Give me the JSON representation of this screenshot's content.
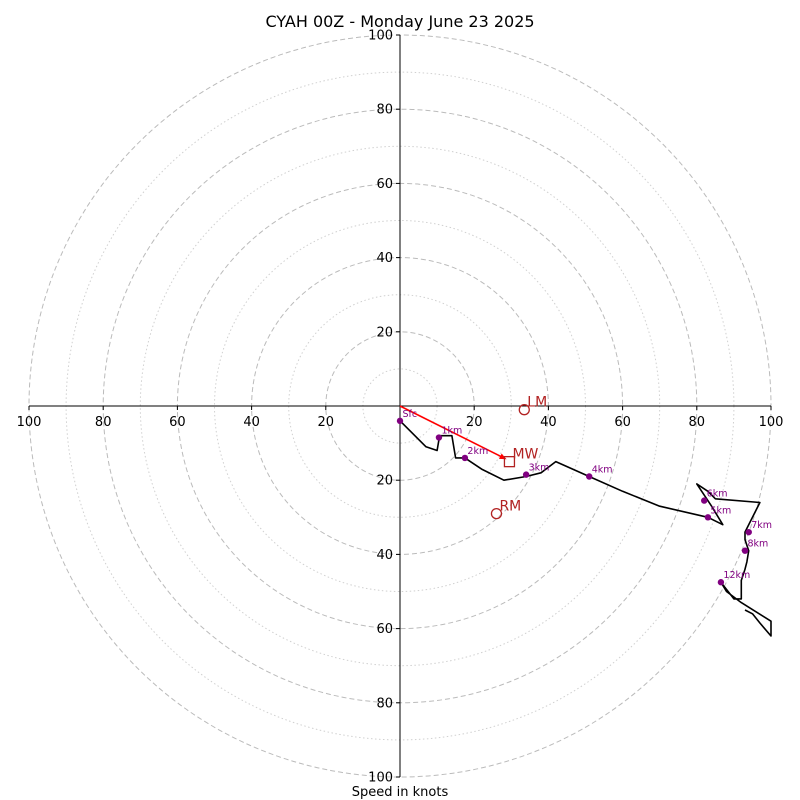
{
  "chart_data": {
    "type": "line",
    "title": "CYAH 00Z - Monday June 23 2025",
    "xlabel": "Speed in knots",
    "ylabel": "",
    "xlim": [
      -100,
      100
    ],
    "ylim": [
      -100,
      100
    ],
    "ring_ticks_x": [
      -100,
      -80,
      -60,
      -40,
      -20,
      20,
      40,
      60,
      80,
      100
    ],
    "ring_ticks_y": [
      -100,
      -80,
      -60,
      -40,
      -20,
      20,
      40,
      60,
      80,
      100
    ],
    "tick_labels_x": [
      "100",
      "80",
      "60",
      "40",
      "20",
      "20",
      "40",
      "60",
      "80",
      "100"
    ],
    "tick_labels_y": [
      "100",
      "80",
      "60",
      "40",
      "20",
      "20",
      "40",
      "60",
      "80",
      "100"
    ],
    "major_rings": [
      20,
      40,
      60,
      80,
      100
    ],
    "minor_rings": [
      10,
      30,
      50,
      70,
      90
    ],
    "grid": true,
    "colors": {
      "hodograph": "#000000",
      "height_markers": "#800080",
      "mean_wind_vector": "#ff0000",
      "motion_markers": "#b22222",
      "major_grid": "#bbbbbb",
      "minor_grid": "#d0d0d0"
    },
    "series": [
      {
        "x": [
          0,
          7,
          10,
          10.5,
          11,
          14,
          15,
          17.5,
          22,
          28,
          34,
          38,
          42,
          51,
          60,
          70,
          83,
          87,
          84,
          80,
          83,
          85,
          97,
          93,
          93,
          94,
          93.5,
          93,
          92,
          92,
          90,
          86.5,
          88,
          92,
          100,
          100,
          97,
          95,
          93
        ],
        "y": [
          -4,
          -11,
          -12,
          -9,
          -8,
          -8,
          -14,
          -14,
          -17,
          -20,
          -19,
          -18,
          -15,
          -19,
          -23,
          -27,
          -30,
          -32,
          -27,
          -21,
          -23,
          -25,
          -26,
          -34,
          -36,
          -39,
          -42,
          -44,
          -47,
          -52,
          -52,
          -47.5,
          -50,
          -53,
          -58,
          -62,
          -58.5,
          -56,
          -55
        ]
      }
    ],
    "height_markers": [
      {
        "label": "Sfc",
        "x": 0,
        "y": -4
      },
      {
        "label": "1km",
        "x": 10.5,
        "y": -8.5
      },
      {
        "label": "2km",
        "x": 17.5,
        "y": -14
      },
      {
        "label": "3km",
        "x": 34,
        "y": -18.5
      },
      {
        "label": "4km",
        "x": 51,
        "y": -19
      },
      {
        "label": "5km",
        "x": 83,
        "y": -30
      },
      {
        "label": "6km",
        "x": 82,
        "y": -25.5
      },
      {
        "label": "7km",
        "x": 94,
        "y": -34
      },
      {
        "label": "8km",
        "x": 93,
        "y": -39
      },
      {
        "label": "12km",
        "x": 86.5,
        "y": -47.5
      }
    ],
    "mean_wind_vector": {
      "x_from": 0,
      "y_from": 0,
      "x_to": 28,
      "y_to": -14
    },
    "storm_motion": [
      {
        "label": "LM",
        "x": 33.5,
        "y": -1,
        "marker": "circle"
      },
      {
        "label": "MW",
        "x": 29.5,
        "y": -15,
        "marker": "square"
      },
      {
        "label": "RM",
        "x": 26,
        "y": -29,
        "marker": "circle"
      }
    ]
  }
}
